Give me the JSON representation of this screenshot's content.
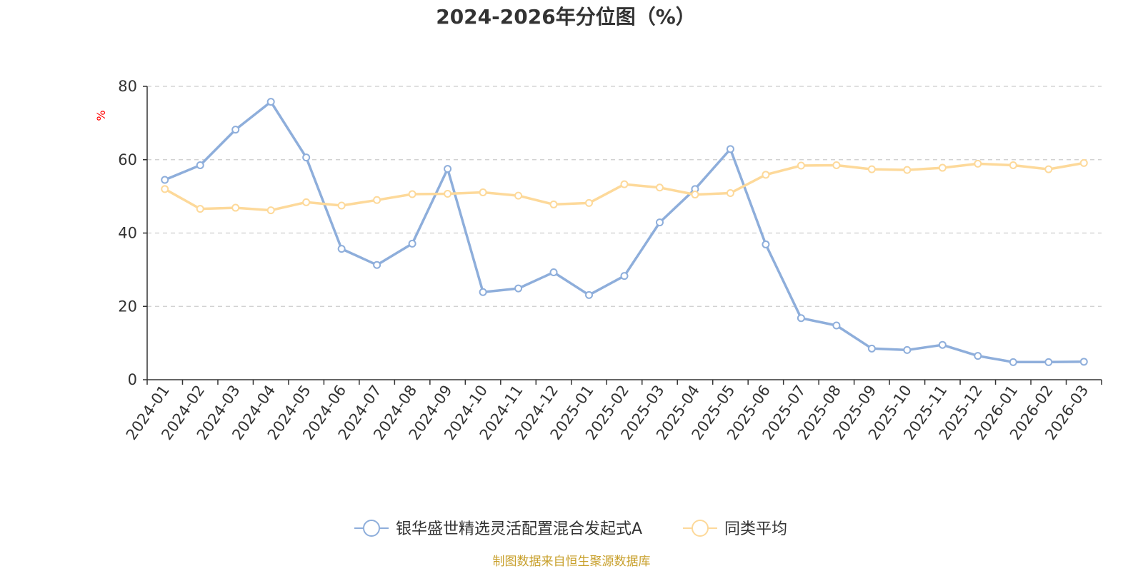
{
  "chart_data": {
    "type": "line",
    "title": "2024-2026年分位图（%）",
    "ylabel": "%",
    "ylim": [
      0,
      80
    ],
    "yticks": [
      0,
      20,
      40,
      60,
      80
    ],
    "grid": true,
    "legend_position": "bottom",
    "categories": [
      "2024-01",
      "2024-02",
      "2024-03",
      "2024-04",
      "2024-05",
      "2024-06",
      "2024-07",
      "2024-08",
      "2024-09",
      "2024-10",
      "2024-11",
      "2024-12",
      "2025-01",
      "2025-02",
      "2025-03",
      "2025-04",
      "2025-05",
      "2025-06",
      "2025-07",
      "2025-08",
      "2025-09",
      "2025-10",
      "2025-11",
      "2025-12",
      "2026-01",
      "2026-02",
      "2026-03"
    ],
    "series": [
      {
        "name": "银华盛世精选灵活配置混合发起式A",
        "color": "#8eaedb",
        "values": [
          54.5,
          58.5,
          68.2,
          75.8,
          60.6,
          35.7,
          31.3,
          37.1,
          57.5,
          23.9,
          24.9,
          29.3,
          23.1,
          28.3,
          42.9,
          52.0,
          62.9,
          36.9,
          16.8,
          14.8,
          8.5,
          8.1,
          9.5,
          6.5,
          4.8,
          4.8,
          4.9
        ]
      },
      {
        "name": "同类平均",
        "color": "#fdd99a",
        "values": [
          52.0,
          46.6,
          46.9,
          46.2,
          48.4,
          47.5,
          49.0,
          50.6,
          50.7,
          51.1,
          50.2,
          47.8,
          48.2,
          53.3,
          52.4,
          50.5,
          50.9,
          55.9,
          58.4,
          58.5,
          57.4,
          57.2,
          57.8,
          58.9,
          58.5,
          57.4,
          59.1
        ]
      }
    ]
  },
  "source": "制图数据来自恒生聚源数据库",
  "colors": {
    "axis": "#333333",
    "grid": "#cccccc",
    "ylabel": "#ff0000",
    "source": "#c8a02c"
  }
}
